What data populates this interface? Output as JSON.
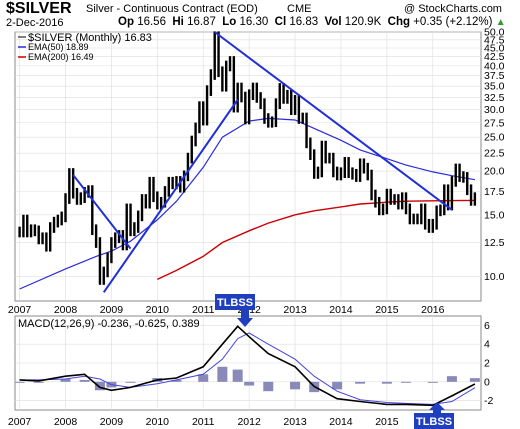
{
  "header": {
    "symbol": "$SILVER",
    "description": "Silver - Continuous Contract (EOD)",
    "exchange": "CME",
    "date": "2-Dec-2016",
    "open_label": "Op",
    "open": "16.56",
    "high_label": "Hi",
    "high": "16.87",
    "low_label": "Lo",
    "low": "16.30",
    "close_label": "Cl",
    "close": "16.83",
    "volume_label": "Vol",
    "volume": "120.9K",
    "change_label": "Chg",
    "change": "+0.35 (+2.12%)",
    "change_arrow": "▲",
    "copyright": "@ StockCharts.com"
  },
  "legend": {
    "price": "$SILVER (Monthly) 16.83",
    "ema50": "EMA(50) 18.89",
    "ema200": "EMA(200) 16.49"
  },
  "macd_label": {
    "text": "MACD(12,26,9) -0.236, -0.625, 0.389"
  },
  "annotations": {
    "tlbss_top": "TLBSS",
    "tlbss_bottom": "TLBSS"
  },
  "colors": {
    "price": "#000000",
    "ema50": "#2b2be0",
    "ema200": "#cc0000",
    "trendline": "#1f2fd8",
    "macd_line": "#000000",
    "signal_line": "#4444dd",
    "histogram": "#8a8ab8",
    "annotation_bg": "#1f3fbf",
    "grid": "#dddddd"
  },
  "chart_data": [
    {
      "type": "line",
      "title": "$SILVER (Monthly)",
      "log_scale": true,
      "ylim": [
        8.5,
        50
      ],
      "y_ticks": [
        10,
        12.5,
        15,
        17.5,
        20,
        22.5,
        25,
        27.5,
        30,
        32.5,
        35,
        37.5,
        40,
        42.5,
        45,
        47.5,
        50
      ],
      "y_tick_labels": [
        "10.0",
        "12.5",
        "15.0",
        "17.5",
        "20.0",
        "22.5",
        "25.0",
        "27.5",
        "30.0",
        "32.5",
        "35.0",
        "37.5",
        "40.0",
        "42.5",
        "45.0",
        "47.5",
        "50.0"
      ],
      "x_tick_labels": [
        "2007",
        "2008",
        "2009",
        "2010",
        "2011",
        "2012",
        "2013",
        "2014",
        "2015",
        "2016"
      ],
      "grid": true,
      "legend_position": "top-left",
      "series": [
        {
          "name": "$SILVER (Monthly)",
          "x": [
            "2007-01",
            "2007-02",
            "2007-03",
            "2007-04",
            "2007-05",
            "2007-06",
            "2007-07",
            "2007-08",
            "2007-09",
            "2007-10",
            "2007-11",
            "2007-12",
            "2008-01",
            "2008-02",
            "2008-03",
            "2008-04",
            "2008-05",
            "2008-06",
            "2008-07",
            "2008-08",
            "2008-09",
            "2008-10",
            "2008-11",
            "2008-12",
            "2009-01",
            "2009-02",
            "2009-03",
            "2009-04",
            "2009-05",
            "2009-06",
            "2009-07",
            "2009-08",
            "2009-09",
            "2009-10",
            "2009-11",
            "2009-12",
            "2010-01",
            "2010-02",
            "2010-03",
            "2010-04",
            "2010-05",
            "2010-06",
            "2010-07",
            "2010-08",
            "2010-09",
            "2010-10",
            "2010-11",
            "2010-12",
            "2011-01",
            "2011-02",
            "2011-03",
            "2011-04",
            "2011-05",
            "2011-06",
            "2011-07",
            "2011-08",
            "2011-09",
            "2011-10",
            "2011-11",
            "2011-12",
            "2012-01",
            "2012-02",
            "2012-03",
            "2012-04",
            "2012-05",
            "2012-06",
            "2012-07",
            "2012-08",
            "2012-09",
            "2012-10",
            "2012-11",
            "2012-12",
            "2013-01",
            "2013-02",
            "2013-03",
            "2013-04",
            "2013-05",
            "2013-06",
            "2013-07",
            "2013-08",
            "2013-09",
            "2013-10",
            "2013-11",
            "2013-12",
            "2014-01",
            "2014-02",
            "2014-03",
            "2014-04",
            "2014-05",
            "2014-06",
            "2014-07",
            "2014-08",
            "2014-09",
            "2014-10",
            "2014-11",
            "2014-12",
            "2015-01",
            "2015-02",
            "2015-03",
            "2015-04",
            "2015-05",
            "2015-06",
            "2015-07",
            "2015-08",
            "2015-09",
            "2015-10",
            "2015-11",
            "2015-12",
            "2016-01",
            "2016-02",
            "2016-03",
            "2016-04",
            "2016-05",
            "2016-06",
            "2016-07",
            "2016-08",
            "2016-09",
            "2016-10",
            "2016-11",
            "2016-12"
          ],
          "values": [
            13.4,
            14.5,
            13.4,
            13.6,
            13.5,
            12.8,
            12.9,
            12.2,
            13.8,
            14.3,
            14.5,
            14.8,
            16.7,
            19.7,
            17.3,
            16.6,
            16.8,
            17.4,
            17.6,
            13.6,
            12.5,
            9.8,
            10.3,
            11.3,
            12.5,
            12.9,
            13.1,
            12.3,
            15.6,
            13.5,
            13.8,
            14.9,
            16.6,
            16.2,
            18.6,
            16.9,
            16.1,
            16.3,
            17.5,
            18.6,
            18.4,
            18.7,
            18.0,
            19.4,
            21.8,
            24.4,
            26.6,
            30.6,
            28.0,
            34.0,
            37.8,
            48.5,
            38.5,
            35.0,
            40.0,
            41.2,
            30.5,
            34.6,
            32.6,
            28.2,
            33.1,
            34.6,
            32.5,
            31.2,
            28.3,
            27.6,
            27.7,
            31.2,
            34.5,
            32.3,
            33.0,
            30.0,
            31.9,
            28.3,
            28.4,
            24.1,
            22.3,
            19.7,
            19.9,
            23.6,
            21.8,
            21.8,
            19.9,
            19.5,
            19.8,
            21.2,
            19.8,
            19.6,
            19.3,
            21.0,
            20.4,
            19.5,
            17.1,
            16.3,
            15.5,
            15.6,
            17.2,
            16.6,
            16.6,
            16.1,
            16.8,
            15.6,
            14.6,
            14.6,
            14.6,
            15.6,
            14.1,
            13.8,
            14.1,
            15.4,
            15.5,
            17.7,
            16.0,
            18.7,
            20.3,
            19.3,
            19.2,
            17.7,
            16.5,
            16.8
          ]
        },
        {
          "name": "EMA(50)",
          "x": [
            "2007-01",
            "2008-01",
            "2008-09",
            "2009-01",
            "2009-06",
            "2010-01",
            "2010-06",
            "2011-01",
            "2011-06",
            "2012-01",
            "2012-06",
            "2013-01",
            "2013-06",
            "2014-01",
            "2014-06",
            "2015-01",
            "2015-06",
            "2016-01",
            "2016-06",
            "2016-12"
          ],
          "values": [
            9.2,
            10.5,
            11.4,
            11.8,
            12.6,
            14.5,
            16.4,
            20.5,
            25.0,
            27.8,
            28.3,
            28.0,
            26.5,
            24.5,
            23.0,
            21.7,
            20.8,
            19.9,
            19.4,
            18.9
          ]
        },
        {
          "name": "EMA(200)",
          "x": [
            "2010-01",
            "2010-06",
            "2011-01",
            "2011-06",
            "2012-01",
            "2012-06",
            "2013-01",
            "2013-06",
            "2014-01",
            "2014-06",
            "2015-01",
            "2015-06",
            "2016-01",
            "2016-06",
            "2016-12"
          ],
          "values": [
            9.8,
            10.4,
            11.4,
            12.5,
            13.5,
            14.2,
            15.0,
            15.4,
            15.8,
            16.1,
            16.3,
            16.4,
            16.45,
            16.47,
            16.49
          ]
        }
      ],
      "trendlines": [
        {
          "from": [
            "2008-03",
            19.5
          ],
          "to": [
            "2009-06",
            12.0
          ]
        },
        {
          "from": [
            "2008-11",
            9.0
          ],
          "to": [
            "2011-10",
            32.0
          ]
        },
        {
          "from": [
            "2011-04",
            50.0
          ],
          "to": [
            "2016-06",
            15.5
          ]
        }
      ]
    },
    {
      "type": "line",
      "title": "MACD(12,26,9)",
      "ylim": [
        -3,
        7
      ],
      "y_ticks": [
        -2,
        0,
        2,
        4,
        6
      ],
      "y_tick_labels": [
        "-2",
        "0",
        "2",
        "4",
        "6"
      ],
      "x_tick_labels": [
        "2007",
        "2008",
        "2009",
        "2010",
        "2011",
        "2012",
        "2013",
        "2014",
        "2015",
        "2016"
      ],
      "grid": true,
      "series": [
        {
          "name": "MACD",
          "x": [
            "2007-01",
            "2007-06",
            "2008-01",
            "2008-06",
            "2008-10",
            "2009-01",
            "2009-06",
            "2010-01",
            "2010-06",
            "2011-01",
            "2011-06",
            "2011-10",
            "2012-01",
            "2012-06",
            "2013-01",
            "2013-06",
            "2013-12",
            "2014-06",
            "2015-01",
            "2015-06",
            "2016-01",
            "2016-06",
            "2016-12"
          ],
          "values": [
            0.2,
            0.1,
            0.6,
            0.8,
            -0.6,
            -0.9,
            -0.6,
            0.2,
            0.4,
            1.6,
            4.0,
            5.9,
            4.8,
            3.0,
            1.6,
            -0.5,
            -1.8,
            -2.1,
            -2.4,
            -2.4,
            -2.5,
            -1.5,
            -0.236
          ]
        },
        {
          "name": "Signal",
          "x": [
            "2007-01",
            "2007-06",
            "2008-01",
            "2008-06",
            "2008-10",
            "2009-01",
            "2009-06",
            "2010-01",
            "2010-06",
            "2011-01",
            "2011-06",
            "2011-10",
            "2012-01",
            "2012-06",
            "2013-01",
            "2013-06",
            "2013-12",
            "2014-06",
            "2015-01",
            "2015-06",
            "2016-01",
            "2016-06",
            "2016-12"
          ],
          "values": [
            0.2,
            0.2,
            0.3,
            0.6,
            0.3,
            -0.3,
            -0.6,
            -0.2,
            0.2,
            0.8,
            2.4,
            4.6,
            5.2,
            4.0,
            2.4,
            0.6,
            -1.0,
            -1.9,
            -2.2,
            -2.3,
            -2.4,
            -2.1,
            -0.625
          ]
        },
        {
          "name": "Histogram",
          "x": [
            "2007-01",
            "2007-06",
            "2008-01",
            "2008-06",
            "2008-10",
            "2009-01",
            "2009-06",
            "2010-01",
            "2010-06",
            "2011-01",
            "2011-06",
            "2011-10",
            "2012-01",
            "2012-06",
            "2013-01",
            "2013-06",
            "2013-12",
            "2014-06",
            "2015-01",
            "2015-06",
            "2016-01",
            "2016-06",
            "2016-12"
          ],
          "values": [
            0.0,
            -0.1,
            0.3,
            0.2,
            -0.9,
            -0.6,
            0.0,
            0.4,
            0.2,
            0.8,
            1.6,
            1.3,
            -0.4,
            -1.0,
            -0.8,
            -1.1,
            -0.8,
            -0.2,
            -0.2,
            -0.1,
            -0.1,
            0.6,
            0.389
          ]
        }
      ]
    }
  ]
}
